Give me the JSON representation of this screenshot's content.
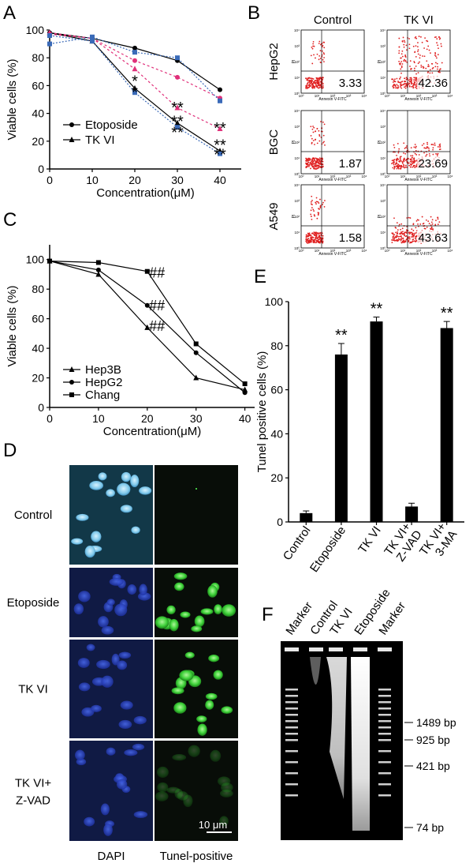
{
  "panel_labels": {
    "a": "A",
    "b": "B",
    "c": "C",
    "d": "D",
    "e": "E",
    "f": "F"
  },
  "chart_data": [
    {
      "id": "A",
      "type": "line",
      "xlabel": "Concentration(μM)",
      "ylabel": "Viable cells (%)",
      "xlim": [
        0,
        45
      ],
      "ylim": [
        0,
        100
      ],
      "xticks": [
        0,
        10,
        20,
        30,
        40
      ],
      "yticks": [
        0,
        20,
        40,
        60,
        80,
        100
      ],
      "x": [
        0,
        10,
        20,
        30,
        40
      ],
      "legend": [
        "Etoposide",
        "TK VI"
      ],
      "series": [
        {
          "name": "Etoposide",
          "marker": "circle",
          "color": "#000000",
          "dash": "",
          "values": [
            98,
            94,
            87,
            78,
            57
          ]
        },
        {
          "name": "TK VI",
          "marker": "triangle",
          "color": "#000000",
          "dash": "",
          "values": [
            98,
            92,
            58,
            33,
            13
          ]
        },
        {
          "color": "#e0307a",
          "marker": "circle",
          "dash": "3,3",
          "values": [
            97,
            94,
            78,
            66,
            51
          ]
        },
        {
          "color": "#e0307a",
          "marker": "triangle",
          "dash": "3,3",
          "values": [
            98,
            94,
            72,
            44,
            29
          ]
        },
        {
          "color": "#3a6ab8",
          "marker": "square",
          "dash": "2,2",
          "values": [
            90,
            95,
            84,
            80,
            49
          ]
        },
        {
          "color": "#3a6ab8",
          "marker": "square",
          "dash": "2,2",
          "values": [
            96,
            92,
            55,
            30,
            11
          ]
        }
      ],
      "annotations": [
        {
          "text": "*",
          "x": 20,
          "y": 64
        },
        {
          "text": "*",
          "x": 20,
          "y": 56
        },
        {
          "text": "**",
          "x": 30,
          "y": 45
        },
        {
          "text": "**",
          "x": 30,
          "y": 35
        },
        {
          "text": "**",
          "x": 30,
          "y": 27
        },
        {
          "text": "**",
          "x": 40,
          "y": 30
        },
        {
          "text": "**",
          "x": 40,
          "y": 18
        },
        {
          "text": "**",
          "x": 40,
          "y": 11
        }
      ]
    },
    {
      "id": "C",
      "type": "line",
      "xlabel": "Concentration(μM)",
      "ylabel": "Viable cells (%)",
      "xlim": [
        0,
        42
      ],
      "ylim": [
        0,
        110
      ],
      "xticks": [
        0,
        10,
        20,
        30,
        40
      ],
      "yticks": [
        0,
        20,
        40,
        60,
        80,
        100
      ],
      "x": [
        0,
        10,
        20,
        30,
        40
      ],
      "legend": [
        "Hep3B",
        "HepG2",
        "Chang"
      ],
      "series": [
        {
          "name": "Hep3B",
          "marker": "triangle",
          "values": [
            99,
            90,
            54,
            20,
            12
          ]
        },
        {
          "name": "HepG2",
          "marker": "circle",
          "values": [
            99,
            93,
            69,
            37,
            10
          ]
        },
        {
          "name": "Chang",
          "marker": "square",
          "values": [
            99,
            98,
            92,
            43,
            16
          ]
        }
      ],
      "annotations": [
        {
          "text": "##",
          "x": 22,
          "y": 92
        },
        {
          "text": "##",
          "x": 22,
          "y": 70
        },
        {
          "text": "##",
          "x": 22,
          "y": 56
        }
      ]
    },
    {
      "id": "E",
      "type": "bar",
      "ylabel": "Tunel positive cells (%)",
      "ylim": [
        0,
        100
      ],
      "yticks": [
        0,
        20,
        40,
        60,
        80,
        100
      ],
      "categories": [
        "Control",
        "Etoposide",
        "TK VI",
        "TK VI+\nZ-VAD",
        "TK VI+\n3-MA"
      ],
      "values": [
        4,
        76,
        91,
        7,
        88
      ],
      "errors": [
        1,
        5,
        2,
        1.5,
        3
      ],
      "significance": [
        "",
        "**",
        "**",
        "",
        "**"
      ]
    }
  ],
  "flow": {
    "columns": [
      "Control",
      "TK VI"
    ],
    "rows": [
      {
        "label": "HepG2",
        "values": [
          "3.33",
          "42.36"
        ]
      },
      {
        "label": "BGC",
        "values": [
          "1.87",
          "23.69"
        ]
      },
      {
        "label": "A549",
        "values": [
          "1.58",
          "43.63"
        ]
      }
    ],
    "x_axis_label": "Annexin V-FITC",
    "y_axis_label": "PI",
    "tick_labels": [
      "10⁰",
      "10¹",
      "10²",
      "10³",
      "10⁴"
    ],
    "dot_color": "#e02020"
  },
  "microscopy": {
    "rows": [
      "Control",
      "Etoposide",
      "TK VI",
      "TK VI+\nZ-VAD"
    ],
    "columns": [
      "DAPI",
      "Tunel-positive"
    ],
    "scale_bar": "10 μm",
    "dapi_color": "#2f4fd0",
    "tunel_color": "#3fd23a"
  },
  "gel": {
    "lanes": [
      "Marker",
      "Control",
      "TK VI",
      "Etoposide",
      "Marker"
    ],
    "bands": [
      "1489 bp",
      "925 bp",
      "421 bp",
      "74 bp"
    ]
  }
}
